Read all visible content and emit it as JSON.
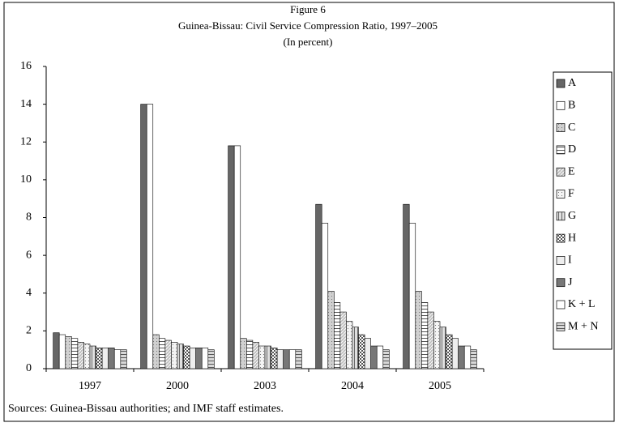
{
  "chart_data": {
    "type": "bar",
    "title": "Figure 6",
    "subtitle": "Guinea-Bissau: Civil Service Compression Ratio, 1997–2005",
    "unit_note": "(In percent)",
    "source": "Sources: Guinea-Bissau authorities; and IMF staff estimates.",
    "categories": [
      "1997",
      "2000",
      "2003",
      "2004",
      "2005"
    ],
    "ylim": [
      0,
      16
    ],
    "yticks": [
      0,
      2,
      4,
      6,
      8,
      10,
      12,
      14,
      16
    ],
    "legend": "right",
    "series": [
      {
        "name": "A",
        "color": "#666666",
        "pattern": "solid",
        "values": [
          1.9,
          14,
          11.8,
          8.7,
          8.7
        ]
      },
      {
        "name": "B",
        "color": "#ffffff",
        "pattern": "solid",
        "values": [
          1.8,
          14,
          11.8,
          7.7,
          7.7
        ]
      },
      {
        "name": "C",
        "color": "#d0d0d0",
        "pattern": "dots",
        "values": [
          1.7,
          1.8,
          1.6,
          4.1,
          4.1
        ]
      },
      {
        "name": "D",
        "color": "#ffffff",
        "pattern": "hlines",
        "values": [
          1.6,
          1.6,
          1.5,
          3.5,
          3.5
        ]
      },
      {
        "name": "E",
        "color": "#c0c0c0",
        "pattern": "diag",
        "values": [
          1.4,
          1.5,
          1.4,
          3.0,
          3.0
        ]
      },
      {
        "name": "F",
        "color": "#f4f4f4",
        "pattern": "dots",
        "values": [
          1.3,
          1.4,
          1.2,
          2.5,
          2.5
        ]
      },
      {
        "name": "G",
        "color": "#e0e0e0",
        "pattern": "vlines",
        "values": [
          1.2,
          1.3,
          1.2,
          2.2,
          2.2
        ]
      },
      {
        "name": "H",
        "color": "#555555",
        "pattern": "checker",
        "values": [
          1.1,
          1.2,
          1.1,
          1.8,
          1.8
        ]
      },
      {
        "name": "I",
        "color": "#eeeeee",
        "pattern": "solid",
        "values": [
          1.1,
          1.1,
          1.0,
          1.6,
          1.6
        ]
      },
      {
        "name": "J",
        "color": "#777777",
        "pattern": "solid",
        "values": [
          1.1,
          1.1,
          1.0,
          1.2,
          1.2
        ]
      },
      {
        "name": "K + L",
        "color": "#ffffff",
        "pattern": "solid",
        "values": [
          1.0,
          1.1,
          1.0,
          1.2,
          1.2
        ]
      },
      {
        "name": "M + N",
        "color": "#d8d8d8",
        "pattern": "hlines",
        "values": [
          1.0,
          1.0,
          1.0,
          1.0,
          1.0
        ]
      }
    ]
  }
}
